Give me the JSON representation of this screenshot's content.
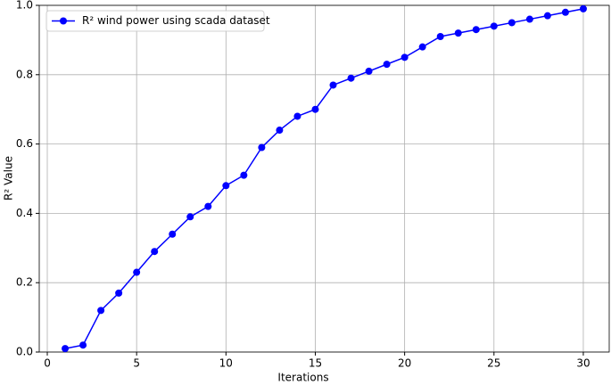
{
  "chart_data": {
    "type": "line",
    "xlabel": "Iterations",
    "ylabel": "R² Value",
    "x": [
      1,
      2,
      3,
      4,
      5,
      6,
      7,
      8,
      9,
      10,
      11,
      12,
      13,
      14,
      15,
      16,
      17,
      18,
      19,
      20,
      21,
      22,
      23,
      24,
      25,
      26,
      27,
      28,
      29,
      30
    ],
    "series": [
      {
        "name": "R² wind power using scada dataset",
        "color": "#0000ff",
        "values": [
          0.01,
          0.02,
          0.12,
          0.17,
          0.23,
          0.29,
          0.34,
          0.39,
          0.42,
          0.48,
          0.51,
          0.59,
          0.64,
          0.68,
          0.7,
          0.77,
          0.79,
          0.81,
          0.83,
          0.85,
          0.88,
          0.91,
          0.92,
          0.93,
          0.94,
          0.95,
          0.96,
          0.97,
          0.98,
          0.99
        ]
      }
    ],
    "xlim": [
      -0.45,
      31.45
    ],
    "xticks": [
      0,
      5,
      10,
      15,
      20,
      25,
      30
    ],
    "ylim": [
      0,
      1
    ],
    "yticks": [
      {
        "value": 0,
        "label": "0.0"
      },
      0.2,
      0.4,
      0.6,
      0.8,
      {
        "value": 1,
        "label": "1.0"
      }
    ],
    "grid": true,
    "legend": "upper left"
  }
}
